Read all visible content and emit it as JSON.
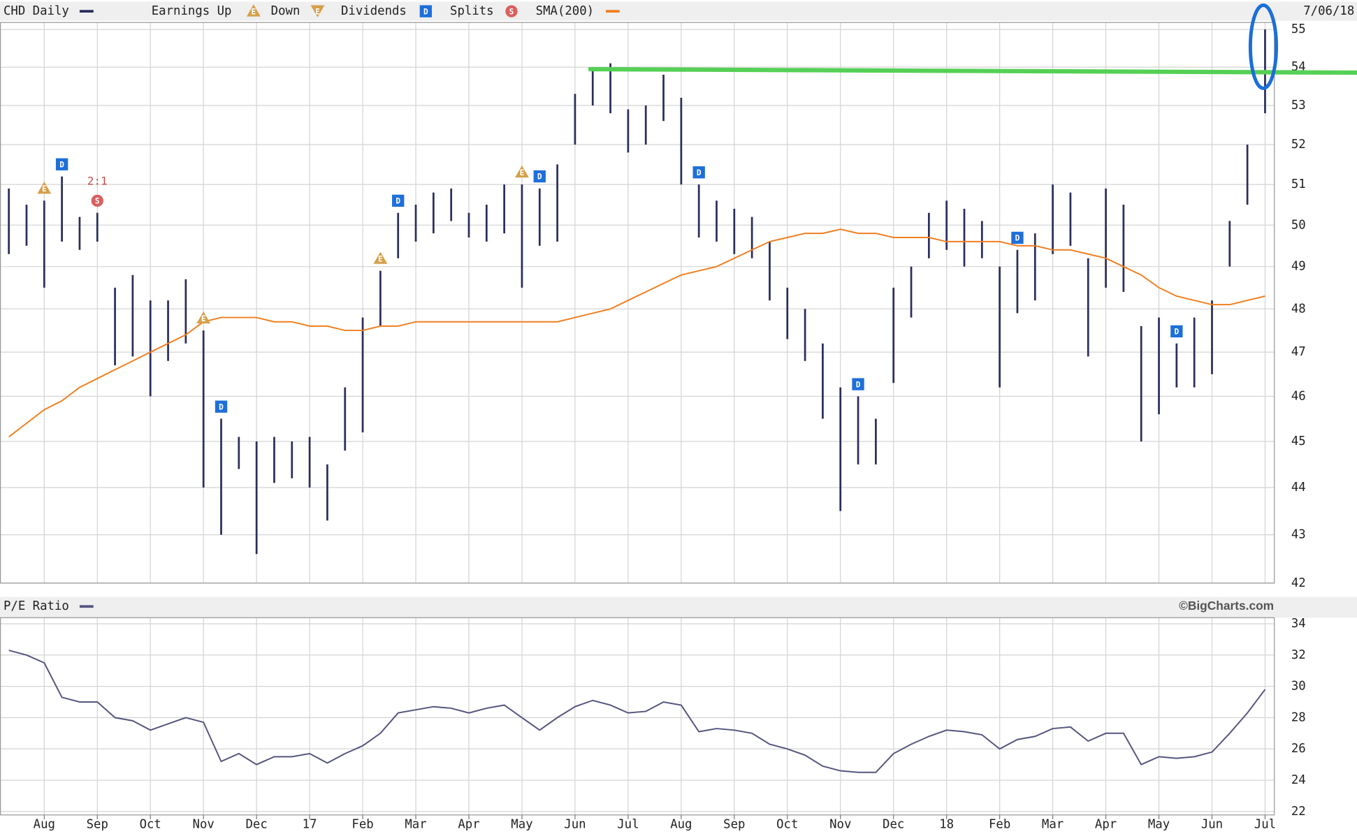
{
  "chart_data": [
    {
      "type": "range-bar",
      "title": "CHD Daily",
      "date": "7/06/18",
      "log": true,
      "grid": true,
      "ylim": [
        42,
        55
      ],
      "yticks": [
        42,
        43,
        44,
        45,
        46,
        47,
        48,
        49,
        50,
        51,
        52,
        53,
        54,
        55
      ],
      "series": [
        {
          "name": "CHD Daily",
          "color": "#2b2d5c",
          "high": [
            50.9,
            50.5,
            50.6,
            51.2,
            50.2,
            50.3,
            48.5,
            48.8,
            48.2,
            48.2,
            48.7,
            47.5,
            45.5,
            45.1,
            45.0,
            45.1,
            45.0,
            45.1,
            44.5,
            46.2,
            47.8,
            48.9,
            50.3,
            50.5,
            50.8,
            50.9,
            50.3,
            50.5,
            51.0,
            51.0,
            50.9,
            51.5,
            53.3,
            53.9,
            54.1,
            52.9,
            53.0,
            53.8,
            53.2,
            51.0,
            50.6,
            50.4,
            50.2,
            49.6,
            48.5,
            48.0,
            47.2,
            46.2,
            46.0,
            45.5,
            48.5,
            49.0,
            50.3,
            50.6,
            50.4,
            50.1,
            49.0,
            49.4,
            49.8,
            51.0,
            50.8,
            49.2,
            50.9,
            50.5,
            47.6,
            47.8,
            47.2,
            47.8,
            48.2,
            50.1,
            52.0,
            55.0
          ],
          "low": [
            49.3,
            49.5,
            48.5,
            49.6,
            49.4,
            49.6,
            46.7,
            46.9,
            46.0,
            46.8,
            47.2,
            44.0,
            43.0,
            44.4,
            42.6,
            44.1,
            44.2,
            44.0,
            43.3,
            44.8,
            45.2,
            47.6,
            49.2,
            49.6,
            49.8,
            50.1,
            49.7,
            49.6,
            49.8,
            48.5,
            49.5,
            49.6,
            52.0,
            53.0,
            52.8,
            51.8,
            52.0,
            52.6,
            51.0,
            49.7,
            49.6,
            49.3,
            49.2,
            48.2,
            47.3,
            46.8,
            45.5,
            43.5,
            44.5,
            44.5,
            46.3,
            47.8,
            49.2,
            49.4,
            49.0,
            49.2,
            46.2,
            47.9,
            48.2,
            49.3,
            49.5,
            46.9,
            48.5,
            48.4,
            45.0,
            45.6,
            46.2,
            46.2,
            46.5,
            49.0,
            50.5,
            52.8
          ]
        },
        {
          "name": "SMA(200)",
          "color": "#f07f20",
          "values": [
            45.1,
            45.4,
            45.7,
            45.9,
            46.2,
            46.4,
            46.6,
            46.8,
            47.0,
            47.2,
            47.4,
            47.7,
            47.8,
            47.8,
            47.8,
            47.7,
            47.7,
            47.6,
            47.6,
            47.5,
            47.5,
            47.6,
            47.6,
            47.7,
            47.7,
            47.7,
            47.7,
            47.7,
            47.7,
            47.7,
            47.7,
            47.7,
            47.8,
            47.9,
            48.0,
            48.2,
            48.4,
            48.6,
            48.8,
            48.9,
            49.0,
            49.2,
            49.4,
            49.6,
            49.7,
            49.8,
            49.8,
            49.9,
            49.8,
            49.8,
            49.7,
            49.7,
            49.7,
            49.6,
            49.6,
            49.6,
            49.6,
            49.5,
            49.5,
            49.4,
            49.4,
            49.3,
            49.2,
            49.0,
            48.8,
            48.5,
            48.3,
            48.2,
            48.1,
            48.1,
            48.2,
            48.3
          ]
        }
      ],
      "marker_types": {
        "earnings_up": {
          "name": "Earnings Up",
          "symbol": "E",
          "color": "#d4a04a"
        },
        "earnings_down": {
          "name": "Down",
          "symbol": "E",
          "color": "#d4a04a"
        },
        "dividend": {
          "name": "Dividends",
          "symbol": "D",
          "color": "#1e6fd9"
        },
        "split": {
          "name": "Splits",
          "symbol": "S",
          "color": "#d96060"
        }
      },
      "markers": [
        {
          "type": "earnings_up",
          "index": 2
        },
        {
          "type": "dividend",
          "index": 3
        },
        {
          "type": "split",
          "index": 5,
          "ratio": "2:1"
        },
        {
          "type": "earnings_up",
          "index": 11
        },
        {
          "type": "dividend",
          "index": 12
        },
        {
          "type": "earnings_up",
          "index": 21
        },
        {
          "type": "dividend",
          "index": 22
        },
        {
          "type": "earnings_up",
          "index": 29
        },
        {
          "type": "dividend",
          "index": 30
        },
        {
          "type": "dividend",
          "index": 39
        },
        {
          "type": "dividend",
          "index": 48
        },
        {
          "type": "dividend",
          "index": 57
        },
        {
          "type": "dividend",
          "index": 66
        }
      ],
      "resistance": {
        "value": 53.9,
        "color": "#55d055"
      },
      "highlight_color": "#1a6fd8"
    },
    {
      "type": "line",
      "title": "P/E Ratio",
      "credit": "©BigCharts.com",
      "grid": true,
      "ylim": [
        22,
        34
      ],
      "yticks": [
        22,
        24,
        26,
        28,
        30,
        32,
        34
      ],
      "categories": [
        null,
        null,
        "Aug",
        null,
        null,
        "Sep",
        null,
        null,
        "Oct",
        null,
        null,
        "Nov",
        null,
        null,
        "Dec",
        null,
        null,
        "17",
        null,
        null,
        "Feb",
        null,
        null,
        "Mar",
        null,
        null,
        "Apr",
        null,
        null,
        "May",
        null,
        null,
        "Jun",
        null,
        null,
        "Jul",
        null,
        null,
        "Aug",
        null,
        null,
        "Sep",
        null,
        null,
        "Oct",
        null,
        null,
        "Nov",
        null,
        null,
        "Dec",
        null,
        null,
        "18",
        null,
        null,
        "Feb",
        null,
        null,
        "Mar",
        null,
        null,
        "Apr",
        null,
        null,
        "May",
        null,
        null,
        "Jun",
        null,
        null,
        "Jul"
      ],
      "series": [
        {
          "name": "P/E Ratio",
          "color": "#55557f",
          "values": [
            32.3,
            32.0,
            31.5,
            29.3,
            29.0,
            29.0,
            28.0,
            27.8,
            27.2,
            27.6,
            28.0,
            27.7,
            25.2,
            25.7,
            25.0,
            25.5,
            25.5,
            25.7,
            25.1,
            25.7,
            26.2,
            27.0,
            28.3,
            28.5,
            28.7,
            28.6,
            28.3,
            28.6,
            28.8,
            28.0,
            27.2,
            28.0,
            28.7,
            29.1,
            28.8,
            28.3,
            28.4,
            29.0,
            28.8,
            27.1,
            27.3,
            27.2,
            27.0,
            26.3,
            26.0,
            25.6,
            24.9,
            24.6,
            24.5,
            24.5,
            25.7,
            26.3,
            26.8,
            27.2,
            27.1,
            26.9,
            26.0,
            26.6,
            26.8,
            27.3,
            27.4,
            26.5,
            27.0,
            27.0,
            25.0,
            25.5,
            25.4,
            25.5,
            25.8,
            27.0,
            28.3,
            29.8
          ]
        }
      ]
    }
  ]
}
